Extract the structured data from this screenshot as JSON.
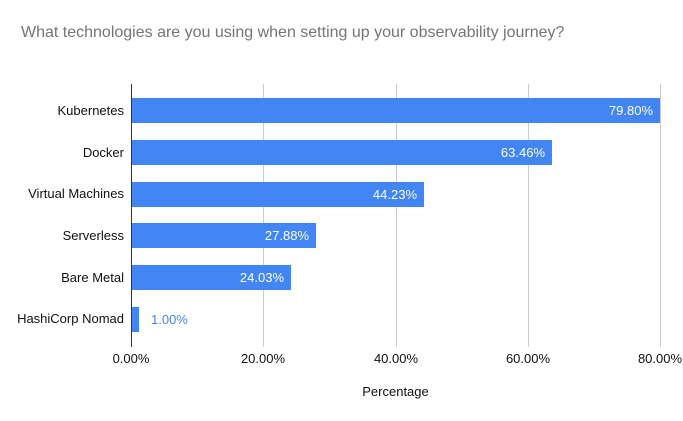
{
  "title": "What technologies are you using when setting up your observability journey?",
  "colors": {
    "bar": "#4285f4",
    "title_text": "#757575",
    "axis_text": "#111111",
    "gridline": "#cccccc",
    "baseline": "#333333",
    "value_label_inside": "#ffffff",
    "value_label_outside": "#4285f4",
    "background": "#ffffff"
  },
  "chart_data": {
    "type": "bar",
    "orientation": "horizontal",
    "title": "What technologies are you using when setting up your observability journey?",
    "categories": [
      "Kubernetes",
      "Docker",
      "Virtual Machines",
      "Serverless",
      "Bare Metal",
      "HashiCorp Nomad"
    ],
    "values": [
      79.8,
      63.46,
      44.23,
      27.88,
      24.03,
      1.0
    ],
    "value_labels": [
      "79.80%",
      "63.46%",
      "44.23%",
      "27.88%",
      "24.03%",
      "1.00%"
    ],
    "xlabel": "Percentage",
    "ylabel": "",
    "xlim": [
      0,
      80
    ],
    "x_ticks": [
      "0.00%",
      "20.00%",
      "40.00%",
      "60.00%",
      "80.00%"
    ],
    "x_tick_values": [
      0,
      20,
      40,
      60,
      80
    ],
    "grid": true,
    "legend": false
  }
}
